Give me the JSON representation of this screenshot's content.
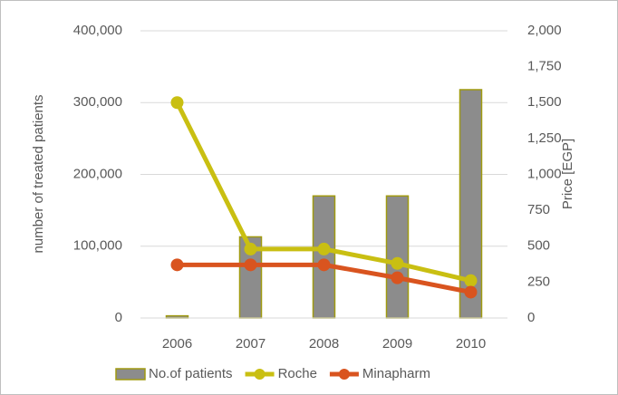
{
  "chart_data": {
    "type": "bar",
    "categories": [
      "2006",
      "2007",
      "2008",
      "2009",
      "2010"
    ],
    "series": [
      {
        "name": "No.of patients",
        "type": "bar",
        "axis": "y",
        "color": "#8c8c8c",
        "edgecolor": "#a09a10",
        "values": [
          3000,
          113000,
          170000,
          170000,
          318000
        ]
      },
      {
        "name": "Roche",
        "type": "line",
        "axis": "y2",
        "color": "#c9bf12",
        "values": [
          1500,
          480,
          480,
          380,
          260
        ]
      },
      {
        "name": "Minapharm",
        "type": "line",
        "axis": "y2",
        "color": "#d9541f",
        "values": [
          370,
          370,
          370,
          280,
          180
        ]
      }
    ],
    "ylabel": "number of treated patients",
    "y2label": "Price [EGP]",
    "ylim": [
      0,
      400000
    ],
    "yticks": [
      0,
      {
        "value": 100000,
        "label": "100,000"
      },
      {
        "value": 200000,
        "label": "200,000"
      },
      {
        "value": 300000,
        "label": "300,000"
      },
      {
        "value": 400000,
        "label": "400,000"
      }
    ],
    "y2lim": [
      0,
      2000
    ],
    "y2ticks": [
      0,
      250,
      500,
      750,
      {
        "value": 1000,
        "label": "1,000"
      },
      {
        "value": 1250,
        "label": "1,250"
      },
      {
        "value": 1500,
        "label": "1,500"
      },
      {
        "value": 1750,
        "label": "1,750"
      },
      {
        "value": 2000,
        "label": "2,000"
      }
    ],
    "grid": true,
    "legend": "bottom"
  }
}
